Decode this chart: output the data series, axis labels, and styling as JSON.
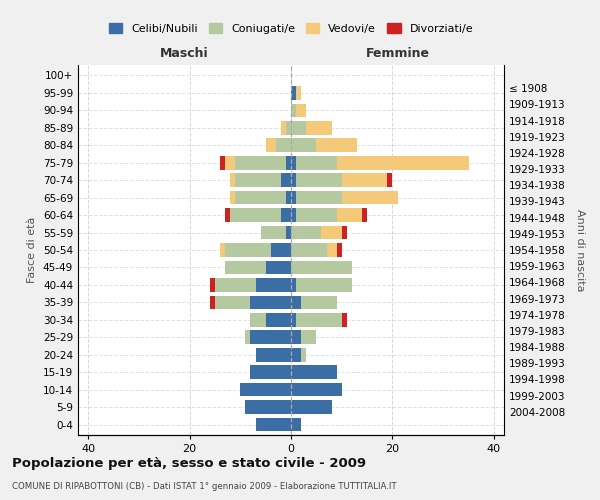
{
  "age_groups": [
    "0-4",
    "5-9",
    "10-14",
    "15-19",
    "20-24",
    "25-29",
    "30-34",
    "35-39",
    "40-44",
    "45-49",
    "50-54",
    "55-59",
    "60-64",
    "65-69",
    "70-74",
    "75-79",
    "80-84",
    "85-89",
    "90-94",
    "95-99",
    "100+"
  ],
  "birth_years": [
    "2004-2008",
    "1999-2003",
    "1994-1998",
    "1989-1993",
    "1984-1988",
    "1979-1983",
    "1974-1978",
    "1969-1973",
    "1964-1968",
    "1959-1963",
    "1954-1958",
    "1949-1953",
    "1944-1948",
    "1939-1943",
    "1934-1938",
    "1929-1933",
    "1924-1928",
    "1919-1923",
    "1914-1918",
    "1909-1913",
    "≤ 1908"
  ],
  "male": {
    "celibi": [
      7,
      9,
      10,
      8,
      7,
      8,
      5,
      8,
      7,
      5,
      4,
      1,
      2,
      1,
      2,
      1,
      0,
      0,
      0,
      0,
      0
    ],
    "coniugati": [
      0,
      0,
      0,
      0,
      0,
      1,
      3,
      7,
      8,
      8,
      9,
      5,
      10,
      10,
      9,
      10,
      3,
      1,
      0,
      0,
      0
    ],
    "vedovi": [
      0,
      0,
      0,
      0,
      0,
      0,
      0,
      0,
      0,
      0,
      1,
      0,
      0,
      1,
      1,
      2,
      2,
      1,
      0,
      0,
      0
    ],
    "divorziati": [
      0,
      0,
      0,
      0,
      0,
      0,
      0,
      1,
      1,
      0,
      0,
      0,
      1,
      0,
      0,
      1,
      0,
      0,
      0,
      0,
      0
    ]
  },
  "female": {
    "nubili": [
      2,
      8,
      10,
      9,
      2,
      2,
      1,
      2,
      1,
      0,
      0,
      0,
      1,
      1,
      1,
      1,
      0,
      0,
      0,
      1,
      0
    ],
    "coniugate": [
      0,
      0,
      0,
      0,
      1,
      3,
      9,
      7,
      11,
      12,
      7,
      6,
      8,
      9,
      9,
      8,
      5,
      3,
      1,
      0,
      0
    ],
    "vedove": [
      0,
      0,
      0,
      0,
      0,
      0,
      0,
      0,
      0,
      0,
      2,
      4,
      5,
      11,
      9,
      26,
      8,
      5,
      2,
      1,
      0
    ],
    "divorziate": [
      0,
      0,
      0,
      0,
      0,
      0,
      1,
      0,
      0,
      0,
      1,
      1,
      1,
      0,
      1,
      0,
      0,
      0,
      0,
      0,
      0
    ]
  },
  "colors": {
    "celibi": "#3a6ea5",
    "coniugati": "#b5c9a0",
    "vedovi": "#f5c97a",
    "divorziati": "#cc2222"
  },
  "title": "Popolazione per età, sesso e stato civile - 2009",
  "subtitle": "COMUNE DI RIPABOTTONI (CB) - Dati ISTAT 1° gennaio 2009 - Elaborazione TUTTITALIA.IT",
  "xlabel_left": "Maschi",
  "xlabel_right": "Femmine",
  "ylabel_left": "Fasce di età",
  "ylabel_right": "Anni di nascita",
  "xlim": 42,
  "bg_color": "#f0f0f0",
  "plot_bg": "#ffffff",
  "legend_labels": [
    "Celibi/Nubili",
    "Coniugati/e",
    "Vedovi/e",
    "Divorziati/e"
  ]
}
